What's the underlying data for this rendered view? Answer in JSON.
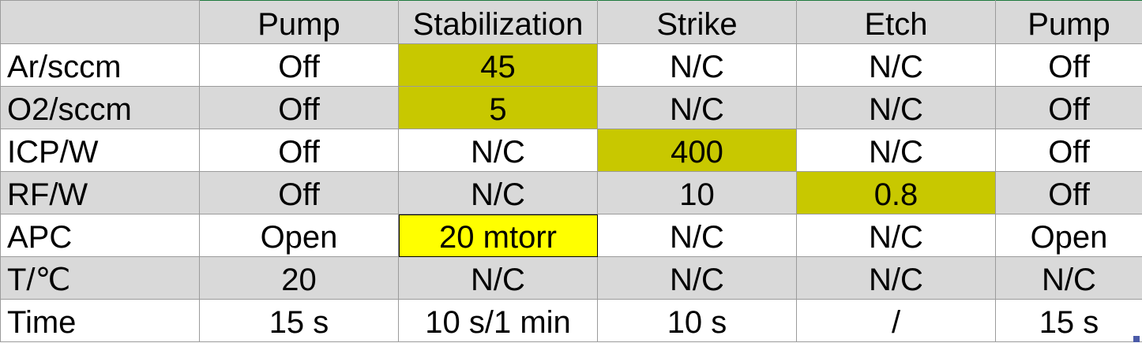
{
  "table": {
    "headers": [
      "",
      "Pump",
      "Stabilization",
      "Strike",
      "Etch",
      "Pump"
    ],
    "rows": [
      {
        "label": "Ar/sccm",
        "cells": [
          "Off",
          "45",
          "N/C",
          "N/C",
          "Off"
        ]
      },
      {
        "label": "O2/sccm",
        "cells": [
          "Off",
          "5",
          "N/C",
          "N/C",
          "Off"
        ]
      },
      {
        "label": "ICP/W",
        "cells": [
          "Off",
          "N/C",
          "400",
          "N/C",
          "Off"
        ]
      },
      {
        "label": "RF/W",
        "cells": [
          "Off",
          "N/C",
          "10",
          "0.8",
          "Off"
        ]
      },
      {
        "label": "APC",
        "cells": [
          "Open",
          "20 mtorr",
          "N/C",
          "N/C",
          "Open"
        ]
      },
      {
        "label": "T/℃",
        "cells": [
          "20",
          "N/C",
          "N/C",
          "N/C",
          "N/C"
        ]
      },
      {
        "label": "Time",
        "cells": [
          "15 s",
          "10 s/1 min",
          "10 s",
          "/",
          "15 s"
        ]
      }
    ]
  },
  "colors": {
    "row_gray": "#d9d9d9",
    "row_white": "#ffffff",
    "highlight_olive": "#c8c800",
    "highlight_yellow": "#ffff00",
    "selection_border": "#1e7a3e"
  }
}
